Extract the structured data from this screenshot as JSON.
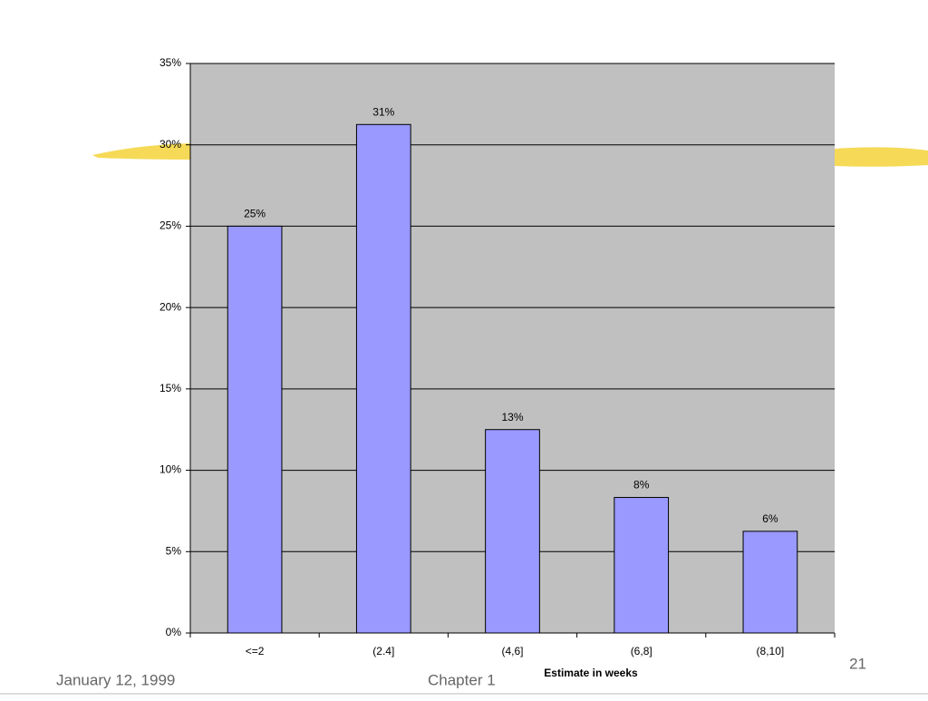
{
  "chart_data": {
    "type": "bar",
    "categories": [
      "<=2",
      "(2.4]",
      "(4,6]",
      "(6,8]",
      "(8,10]"
    ],
    "values": [
      25,
      31.25,
      12.5,
      8.33,
      6.25
    ],
    "value_labels": [
      "25%",
      "31%",
      "13%",
      "8%",
      "6%"
    ],
    "color": "#9999ff",
    "x_label": "Estimate in weeks",
    "ylim": [
      0,
      35
    ],
    "yticks": [
      {
        "value": 0,
        "label": "0%"
      },
      {
        "value": 5,
        "label": "5%"
      },
      {
        "value": 10,
        "label": "10%"
      },
      {
        "value": 15,
        "label": "15%"
      },
      {
        "value": 20,
        "label": "20%"
      },
      {
        "value": 25,
        "label": "25%"
      },
      {
        "value": 30,
        "label": "30%"
      },
      {
        "value": 35,
        "label": "35%"
      }
    ],
    "grid": true
  },
  "slide": {
    "date": "January 12, 1999",
    "chapter": "Chapter 1",
    "page": "21"
  }
}
